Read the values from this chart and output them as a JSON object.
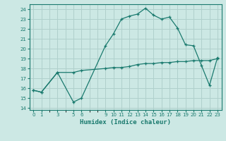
{
  "xlabel": "Humidex (Indice chaleur)",
  "background_color": "#cce8e4",
  "grid_color": "#b0d0cc",
  "line_color": "#1a7a6e",
  "ylim": [
    13.8,
    24.5
  ],
  "xlim": [
    -0.5,
    23.5
  ],
  "yticks": [
    14,
    15,
    16,
    17,
    18,
    19,
    20,
    21,
    22,
    23,
    24
  ],
  "xticks": [
    0,
    1,
    3,
    5,
    6,
    9,
    10,
    11,
    12,
    13,
    14,
    15,
    16,
    17,
    18,
    19,
    20,
    21,
    22,
    23
  ],
  "series1_x": [
    0,
    1,
    3,
    5,
    6,
    9,
    10,
    11,
    12,
    13,
    14,
    15,
    16,
    17,
    18,
    19,
    20,
    21,
    22,
    23
  ],
  "series1_y": [
    15.8,
    15.6,
    17.6,
    14.6,
    15.0,
    20.3,
    21.5,
    23.0,
    23.3,
    23.5,
    24.1,
    23.4,
    23.0,
    23.2,
    22.1,
    20.4,
    20.3,
    18.3,
    16.3,
    19.1
  ],
  "series2_x": [
    0,
    1,
    3,
    5,
    6,
    9,
    10,
    11,
    12,
    13,
    14,
    15,
    16,
    17,
    18,
    19,
    20,
    21,
    22,
    23
  ],
  "series2_y": [
    15.8,
    15.6,
    17.6,
    17.6,
    17.8,
    18.0,
    18.1,
    18.1,
    18.2,
    18.4,
    18.5,
    18.5,
    18.6,
    18.6,
    18.7,
    18.7,
    18.8,
    18.8,
    18.8,
    19.0
  ]
}
